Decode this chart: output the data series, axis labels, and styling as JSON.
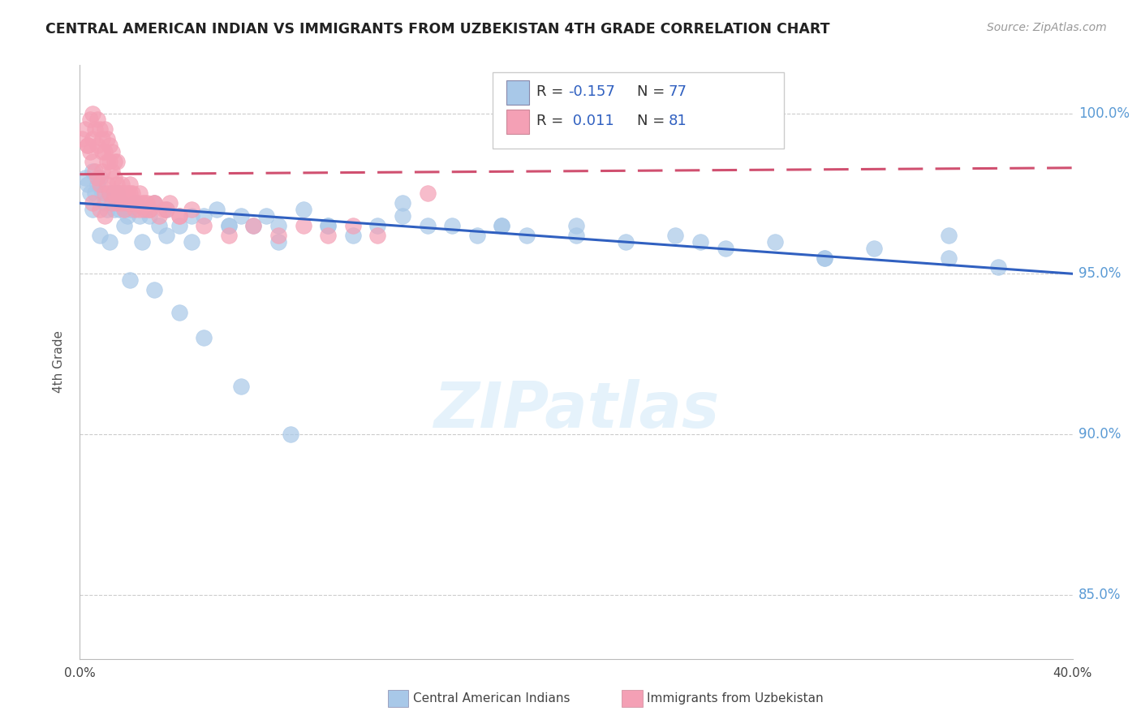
{
  "title": "CENTRAL AMERICAN INDIAN VS IMMIGRANTS FROM UZBEKISTAN 4TH GRADE CORRELATION CHART",
  "source": "Source: ZipAtlas.com",
  "ylabel": "4th Grade",
  "xlim": [
    0.0,
    40.0
  ],
  "ylim": [
    83.0,
    101.5
  ],
  "yticks": [
    85.0,
    90.0,
    95.0,
    100.0
  ],
  "ytick_labels": [
    "85.0%",
    "90.0%",
    "95.0%",
    "100.0%"
  ],
  "blue_color": "#a8c8e8",
  "pink_color": "#f4a0b5",
  "blue_line_color": "#3060c0",
  "pink_line_color": "#d05070",
  "blue_trend": [
    97.2,
    95.0
  ],
  "pink_trend": [
    98.1,
    98.3
  ],
  "blue_scatter_x": [
    0.2,
    0.3,
    0.4,
    0.5,
    0.5,
    0.6,
    0.7,
    0.8,
    0.9,
    1.0,
    1.1,
    1.2,
    1.3,
    1.4,
    1.5,
    1.6,
    1.7,
    1.8,
    1.9,
    2.0,
    2.2,
    2.4,
    2.6,
    2.8,
    3.0,
    3.2,
    3.5,
    4.0,
    4.5,
    5.0,
    5.5,
    6.0,
    6.5,
    7.0,
    7.5,
    8.0,
    9.0,
    10.0,
    11.0,
    12.0,
    13.0,
    14.0,
    15.0,
    16.0,
    17.0,
    18.0,
    20.0,
    22.0,
    24.0,
    26.0,
    28.0,
    30.0,
    32.0,
    35.0,
    37.0,
    0.8,
    1.2,
    1.8,
    2.5,
    3.5,
    4.5,
    6.0,
    8.0,
    10.0,
    13.0,
    17.0,
    20.0,
    25.0,
    30.0,
    35.0,
    2.0,
    3.0,
    4.0,
    5.0,
    6.5,
    8.5
  ],
  "blue_scatter_y": [
    98.0,
    97.8,
    97.5,
    98.2,
    97.0,
    97.5,
    97.8,
    98.0,
    97.5,
    97.2,
    97.0,
    97.5,
    97.2,
    97.0,
    97.5,
    97.0,
    97.2,
    97.0,
    96.8,
    97.0,
    97.2,
    96.8,
    97.0,
    96.8,
    97.2,
    96.5,
    97.0,
    96.5,
    96.8,
    96.8,
    97.0,
    96.5,
    96.8,
    96.5,
    96.8,
    96.5,
    97.0,
    96.5,
    96.2,
    96.5,
    97.2,
    96.5,
    96.5,
    96.2,
    96.5,
    96.2,
    96.5,
    96.0,
    96.2,
    95.8,
    96.0,
    95.5,
    95.8,
    96.2,
    95.2,
    96.2,
    96.0,
    96.5,
    96.0,
    96.2,
    96.0,
    96.5,
    96.0,
    96.5,
    96.8,
    96.5,
    96.2,
    96.0,
    95.5,
    95.5,
    94.8,
    94.5,
    93.8,
    93.0,
    91.5,
    90.0
  ],
  "pink_scatter_x": [
    0.1,
    0.2,
    0.3,
    0.4,
    0.5,
    0.5,
    0.6,
    0.7,
    0.7,
    0.8,
    0.9,
    0.9,
    1.0,
    1.0,
    1.1,
    1.1,
    1.2,
    1.2,
    1.3,
    1.3,
    1.4,
    1.4,
    1.5,
    1.5,
    1.6,
    1.7,
    1.8,
    1.9,
    2.0,
    2.0,
    2.1,
    2.2,
    2.3,
    2.4,
    2.5,
    2.6,
    2.7,
    2.8,
    3.0,
    3.2,
    3.4,
    3.6,
    4.0,
    4.5,
    0.3,
    0.4,
    0.5,
    0.6,
    0.7,
    0.8,
    0.9,
    1.0,
    1.1,
    1.2,
    1.3,
    1.4,
    1.5,
    1.6,
    1.7,
    1.8,
    1.9,
    2.0,
    2.2,
    2.4,
    2.6,
    2.8,
    3.0,
    3.5,
    4.0,
    5.0,
    6.0,
    7.0,
    8.0,
    9.0,
    10.0,
    11.0,
    12.0,
    14.0,
    0.5,
    0.8,
    1.0
  ],
  "pink_scatter_y": [
    99.2,
    99.5,
    99.0,
    99.8,
    100.0,
    99.2,
    99.5,
    99.8,
    99.0,
    99.5,
    99.2,
    98.8,
    99.5,
    98.8,
    99.2,
    98.5,
    99.0,
    98.5,
    98.8,
    98.2,
    98.5,
    98.0,
    98.5,
    97.8,
    97.5,
    97.8,
    97.5,
    97.5,
    97.8,
    97.2,
    97.5,
    97.0,
    97.2,
    97.5,
    97.2,
    97.0,
    97.2,
    97.0,
    97.2,
    96.8,
    97.0,
    97.2,
    96.8,
    97.0,
    99.0,
    98.8,
    98.5,
    98.2,
    98.0,
    97.8,
    98.2,
    97.5,
    97.8,
    97.5,
    97.2,
    97.5,
    97.2,
    97.5,
    97.2,
    97.0,
    97.2,
    97.5,
    97.2,
    97.0,
    97.2,
    97.0,
    97.2,
    97.0,
    96.8,
    96.5,
    96.2,
    96.5,
    96.2,
    96.5,
    96.2,
    96.5,
    96.2,
    97.5,
    97.2,
    97.0,
    96.8
  ]
}
